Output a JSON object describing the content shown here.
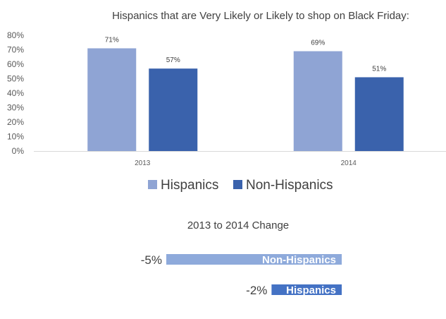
{
  "chart_data": [
    {
      "type": "bar",
      "title": "Hispanics that are Very Likely or Likely to shop on Black Friday:",
      "xlabel": "",
      "ylabel": "",
      "categories": [
        "2013",
        "2014"
      ],
      "series": [
        {
          "name": "Hispanics",
          "values": [
            71,
            69
          ],
          "labels": [
            "71%",
            "69%"
          ],
          "color": "#8fa4d4"
        },
        {
          "name": "Non-Hispanics",
          "values": [
            57,
            51
          ],
          "labels": [
            "57%",
            "51%"
          ],
          "color": "#3a62ac"
        }
      ],
      "ylim": [
        0,
        80
      ],
      "yticks": [
        0,
        10,
        20,
        30,
        40,
        50,
        60,
        70,
        80
      ],
      "ytick_labels": [
        "0%",
        "10%",
        "20%",
        "30%",
        "40%",
        "50%",
        "60%",
        "70%",
        "80%"
      ],
      "grid": false,
      "legend_position": "bottom"
    },
    {
      "type": "bar",
      "orientation": "horizontal",
      "title": "2013 to 2014 Change",
      "categories": [
        "Non-Hispanics",
        "Hispanics"
      ],
      "values": [
        -5,
        -2
      ],
      "labels": [
        "-5%",
        "-2%"
      ],
      "colors": [
        "#8eaadb",
        "#4472c4"
      ]
    }
  ]
}
